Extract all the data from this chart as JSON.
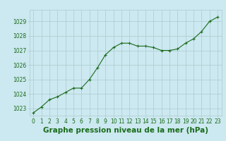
{
  "x": [
    0,
    1,
    2,
    3,
    4,
    5,
    6,
    7,
    8,
    9,
    10,
    11,
    12,
    13,
    14,
    15,
    16,
    17,
    18,
    19,
    20,
    21,
    22,
    23
  ],
  "y": [
    1022.7,
    1023.1,
    1023.6,
    1023.8,
    1024.1,
    1024.4,
    1024.4,
    1025.0,
    1025.8,
    1026.7,
    1027.2,
    1027.5,
    1027.5,
    1027.3,
    1027.3,
    1027.2,
    1027.0,
    1027.0,
    1027.1,
    1027.5,
    1027.8,
    1028.3,
    1029.0,
    1029.3
  ],
  "line_color": "#1a6b1a",
  "marker_color": "#1a6b1a",
  "bg_color": "#cce8f0",
  "grid_color": "#aacccc",
  "xlabel": "Graphe pression niveau de la mer (hPa)",
  "ylim_min": 1022.5,
  "ylim_max": 1029.8,
  "xlim_min": -0.5,
  "xlim_max": 23.5,
  "yticks": [
    1023,
    1024,
    1025,
    1026,
    1027,
    1028,
    1029
  ],
  "xticks": [
    0,
    1,
    2,
    3,
    4,
    5,
    6,
    7,
    8,
    9,
    10,
    11,
    12,
    13,
    14,
    15,
    16,
    17,
    18,
    19,
    20,
    21,
    22,
    23
  ],
  "tick_label_fontsize": 5.5,
  "xlabel_fontsize": 7.5,
  "marker_size": 3,
  "line_width": 0.8
}
